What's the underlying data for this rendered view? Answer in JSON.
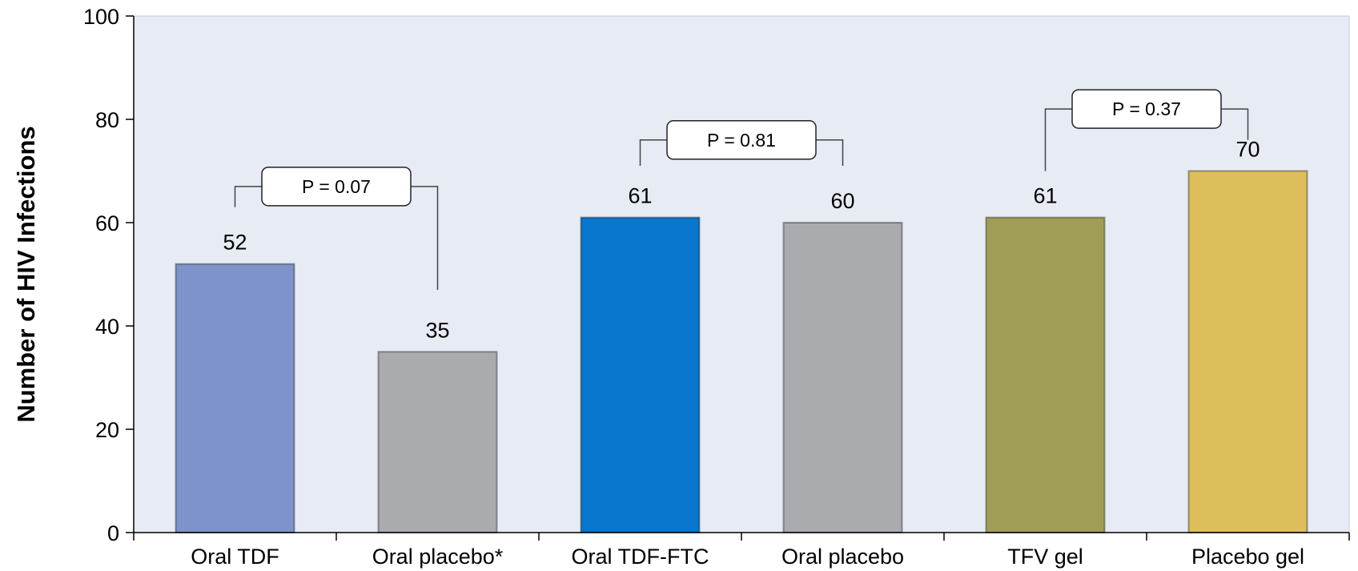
{
  "chart_data": {
    "type": "bar",
    "title": "",
    "xlabel": "",
    "ylabel": "Number of HIV Infections",
    "ylim": [
      0,
      100
    ],
    "yticks": [
      0,
      20,
      40,
      60,
      80,
      100
    ],
    "grid": false,
    "legend": "none",
    "categories": [
      "Oral TDF",
      "Oral placebo*",
      "Oral TDF-FTC",
      "Oral placebo",
      "TFV gel",
      "Placebo gel"
    ],
    "values": [
      52,
      35,
      61,
      60,
      61,
      70
    ],
    "value_labels": [
      "52",
      "35",
      "61",
      "60",
      "61",
      "70"
    ],
    "bar_colors": [
      "#7d93c9",
      "#aaabae",
      "#0776cc",
      "#aaabae",
      "#a09e56",
      "#dcbf5a"
    ],
    "plot_background": "#e7ebf3",
    "annotations": [
      {
        "text": "P = 0.07",
        "from": 0,
        "to": 1,
        "y_left": 63,
        "y_right": 47,
        "y_bracket": 67
      },
      {
        "text": "P = 0.81",
        "from": 2,
        "to": 3,
        "y_left": 71,
        "y_right": 71,
        "y_bracket": 76
      },
      {
        "text": "P = 0.37",
        "from": 4,
        "to": 5,
        "y_left": 70,
        "y_right": 76,
        "y_bracket": 82
      }
    ]
  }
}
